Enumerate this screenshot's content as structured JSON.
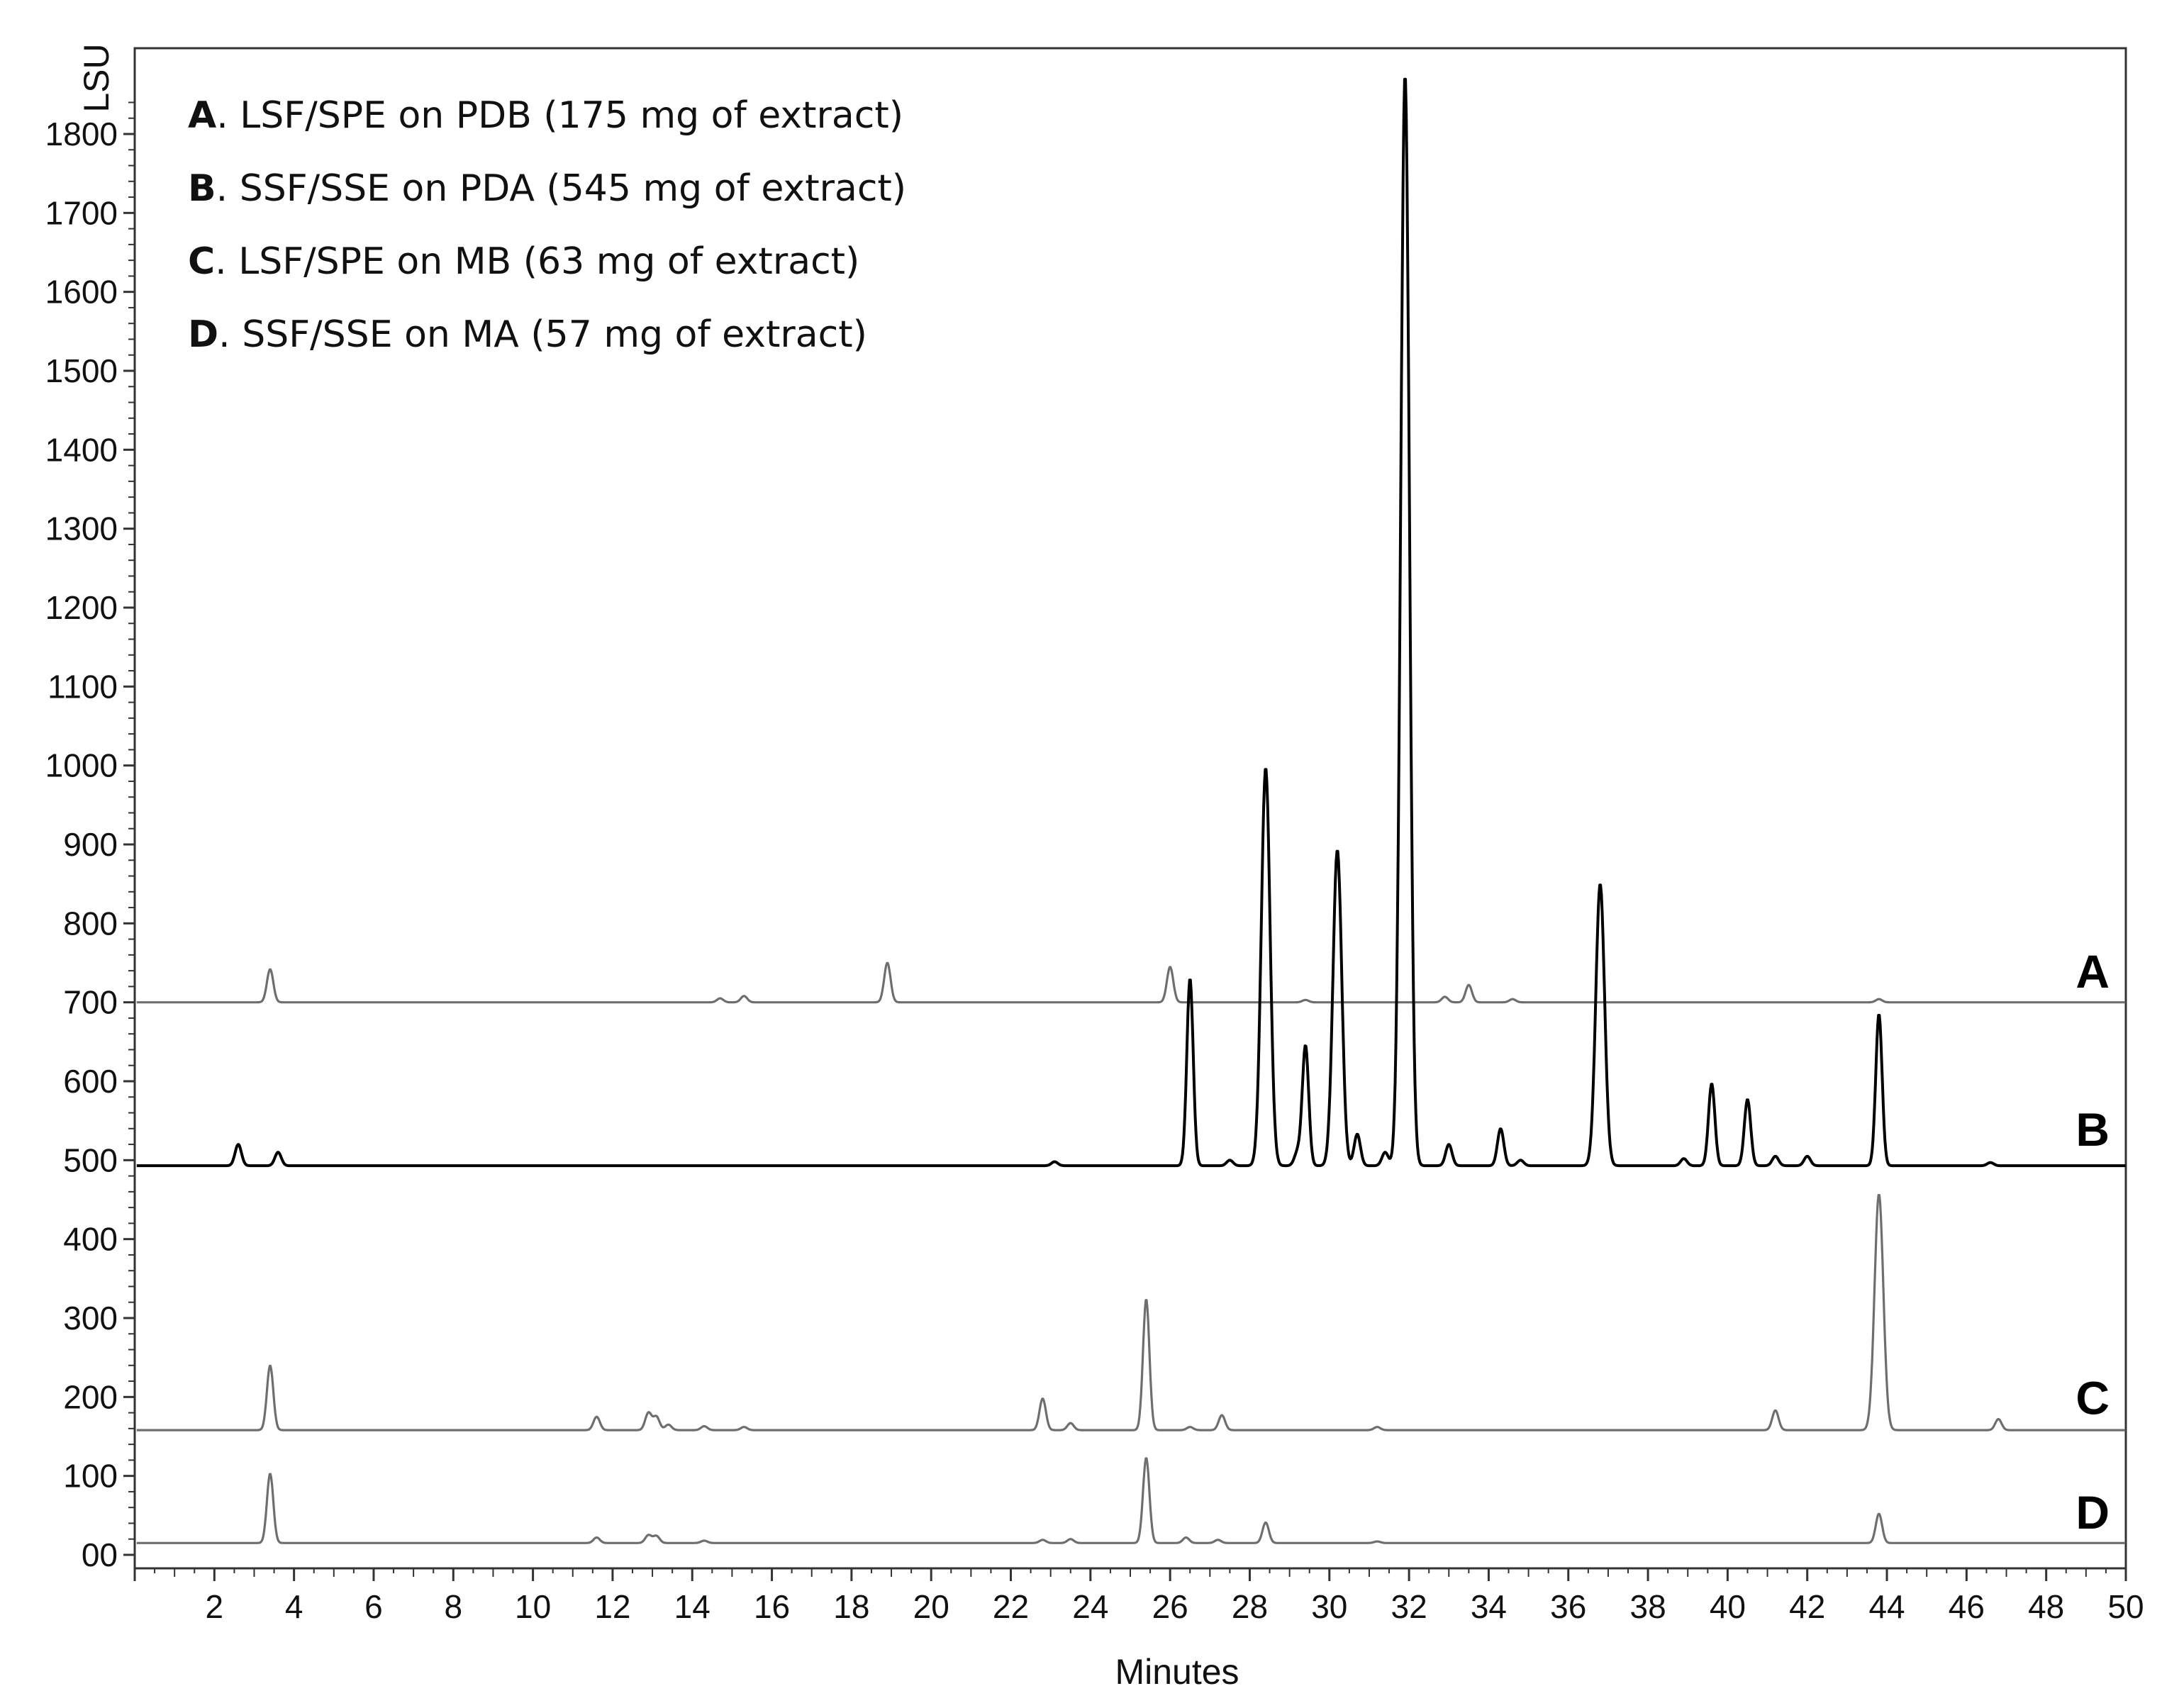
{
  "chart_data": {
    "type": "line",
    "xlabel": "Minutes",
    "ylabel": "LSU",
    "xlim": [
      0,
      50
    ],
    "ylim": [
      0,
      1880
    ],
    "x_ticks": [
      2,
      4,
      6,
      8,
      10,
      12,
      14,
      16,
      18,
      20,
      22,
      24,
      26,
      28,
      30,
      32,
      34,
      36,
      38,
      40,
      42,
      44,
      46,
      48,
      50
    ],
    "y_ticks": [
      0,
      100,
      200,
      300,
      400,
      500,
      600,
      700,
      800,
      900,
      1000,
      1100,
      1200,
      1300,
      1400,
      1500,
      1600,
      1700,
      1800
    ],
    "y_tick_labels": [
      "00",
      "100",
      "200",
      "300",
      "400",
      "500",
      "600",
      "700",
      "800",
      "900",
      "1000",
      "1100",
      "1200",
      "1300",
      "1400",
      "1500",
      "1600",
      "1700",
      "1800"
    ],
    "legend": [
      {
        "key": "A",
        "text": ". LSF/SPE on PDB (175 mg of extract)"
      },
      {
        "key": "B",
        "text": ". SSF/SSE on PDA (545 mg of extract)"
      },
      {
        "key": "C",
        "text": ". LSF/SPE on MB   (63 mg of extract)"
      },
      {
        "key": "D",
        "text": ". SSF/SSE on MA   (57 mg of extract)"
      }
    ],
    "series": [
      {
        "name": "A",
        "color": "#6e6e6e",
        "baseline": 700,
        "label_y": 740,
        "peaks": [
          [
            3.4,
            742
          ],
          [
            14.7,
            705
          ],
          [
            15.3,
            708
          ],
          [
            18.9,
            750
          ],
          [
            26.0,
            745
          ],
          [
            29.4,
            703
          ],
          [
            32.9,
            707
          ],
          [
            33.5,
            722
          ],
          [
            34.6,
            704
          ],
          [
            43.8,
            704
          ]
        ]
      },
      {
        "name": "B",
        "color": "#000000",
        "baseline": 493,
        "label_y": 540,
        "peaks": [
          [
            2.6,
            520
          ],
          [
            3.6,
            510
          ],
          [
            23.1,
            498
          ],
          [
            26.5,
            730
          ],
          [
            27.5,
            500
          ],
          [
            28.4,
            997
          ],
          [
            29.2,
            510
          ],
          [
            29.4,
            645
          ],
          [
            30.2,
            893
          ],
          [
            30.7,
            533
          ],
          [
            31.4,
            510
          ],
          [
            31.9,
            1875
          ],
          [
            33.0,
            520
          ],
          [
            34.3,
            540
          ],
          [
            34.8,
            500
          ],
          [
            36.8,
            850
          ],
          [
            38.9,
            502
          ],
          [
            39.6,
            597
          ],
          [
            40.5,
            577
          ],
          [
            41.2,
            505
          ],
          [
            42.0,
            505
          ],
          [
            43.8,
            685
          ],
          [
            46.6,
            497
          ]
        ]
      },
      {
        "name": "C",
        "color": "#6e6e6e",
        "baseline": 158,
        "label_y": 200,
        "peaks": [
          [
            3.4,
            240
          ],
          [
            11.6,
            175
          ],
          [
            12.9,
            180
          ],
          [
            13.1,
            175
          ],
          [
            13.4,
            165
          ],
          [
            14.3,
            163
          ],
          [
            15.3,
            162
          ],
          [
            22.8,
            198
          ],
          [
            23.5,
            167
          ],
          [
            25.4,
            324
          ],
          [
            26.5,
            162
          ],
          [
            27.3,
            177
          ],
          [
            31.2,
            162
          ],
          [
            41.2,
            183
          ],
          [
            43.8,
            457
          ],
          [
            46.8,
            172
          ]
        ]
      },
      {
        "name": "D",
        "color": "#6e6e6e",
        "baseline": 15,
        "label_y": 55,
        "peaks": [
          [
            3.4,
            103
          ],
          [
            11.6,
            22
          ],
          [
            12.9,
            25
          ],
          [
            13.1,
            24
          ],
          [
            14.3,
            18
          ],
          [
            22.8,
            19
          ],
          [
            23.5,
            20
          ],
          [
            25.4,
            123
          ],
          [
            26.4,
            22
          ],
          [
            27.2,
            19
          ],
          [
            28.4,
            41
          ],
          [
            31.2,
            17
          ],
          [
            43.8,
            52
          ]
        ]
      }
    ]
  }
}
